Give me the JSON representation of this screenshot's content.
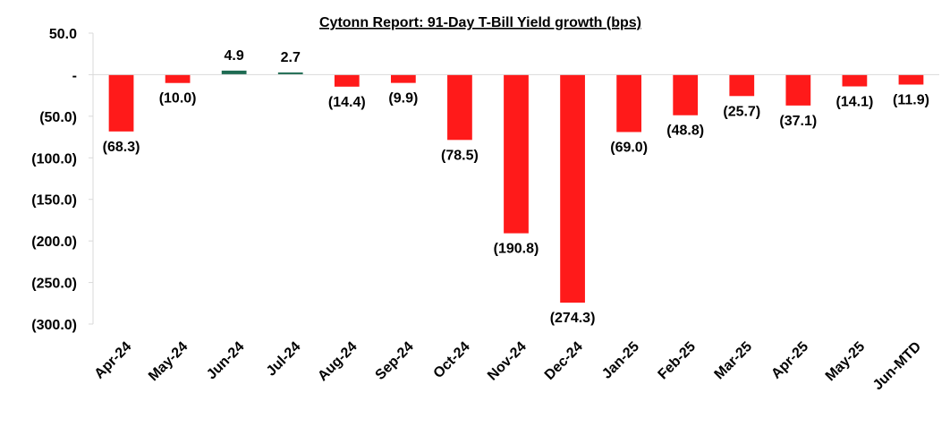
{
  "chart_data": {
    "type": "bar",
    "title": "Cytonn Report:  91-Day T-Bill Yield growth (bps)",
    "xlabel": "",
    "ylabel": "",
    "ylim": [
      -300,
      50
    ],
    "y_ticks": [
      {
        "value": 50,
        "label": "50.0"
      },
      {
        "value": 0,
        "label": "-"
      },
      {
        "value": -50,
        "label": "(50.0)"
      },
      {
        "value": -100,
        "label": "(100.0)"
      },
      {
        "value": -150,
        "label": "(150.0)"
      },
      {
        "value": -200,
        "label": "(200.0)"
      },
      {
        "value": -250,
        "label": "(250.0)"
      },
      {
        "value": -300,
        "label": "(300.0)"
      }
    ],
    "categories": [
      "Apr-24",
      "May-24",
      "Jun-24",
      "Jul-24",
      "Aug-24",
      "Sep-24",
      "Oct-24",
      "Nov-24",
      "Dec-24",
      "Jan-25",
      "Feb-25",
      "Mar-25",
      "Apr-25",
      "May-25",
      "Jun-MTD"
    ],
    "values": [
      -68.3,
      -10.0,
      4.9,
      2.7,
      -14.4,
      -9.9,
      -78.5,
      -190.8,
      -274.3,
      -69.0,
      -48.8,
      -25.7,
      -37.1,
      -14.1,
      -11.9
    ],
    "data_labels": [
      "(68.3)",
      "(10.0)",
      "4.9",
      "2.7",
      "(14.4)",
      "(9.9)",
      "(78.5)",
      "(190.8)",
      "(274.3)",
      "(69.0)",
      "(48.8)",
      "(25.7)",
      "(37.1)",
      "(14.1)",
      "(11.9)"
    ],
    "colors": {
      "positive": "#1e6b52",
      "negative": "#ff1a1a",
      "axis": "#d9d9d9"
    },
    "grid": false,
    "legend": "none"
  }
}
